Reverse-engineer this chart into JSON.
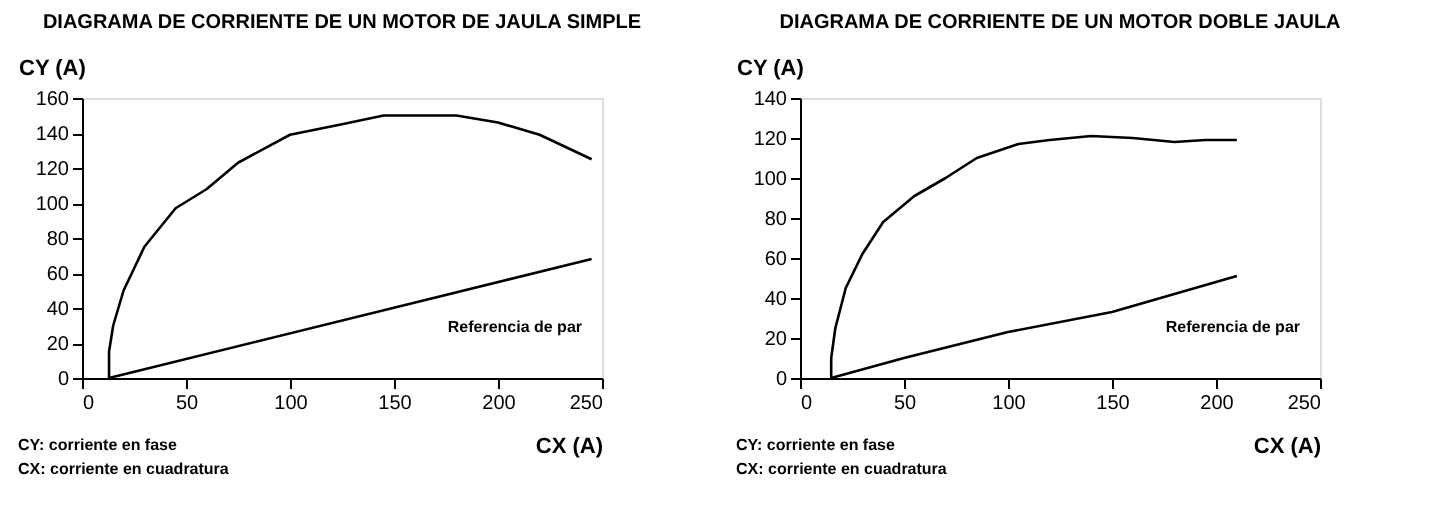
{
  "chart_data": [
    {
      "type": "line",
      "title": "DIAGRAMA DE CORRIENTE DE UN MOTOR DE JAULA SIMPLE",
      "xlabel": "CX (A)",
      "ylabel": "CY (A)",
      "xlim": [
        0,
        250
      ],
      "xticks": [
        0,
        50,
        100,
        150,
        200,
        250
      ],
      "ylim": [
        0,
        160
      ],
      "yticks": [
        0,
        20,
        40,
        60,
        80,
        100,
        120,
        140,
        160
      ],
      "grid": false,
      "line_style": "solid",
      "marker": "none",
      "series": [
        {
          "color": "#000000",
          "x": [
            13,
            13,
            15,
            20,
            30,
            45,
            60,
            75,
            100,
            125,
            145,
            160,
            180,
            200,
            220,
            245
          ],
          "values": [
            0,
            15,
            30,
            50,
            75,
            97,
            108,
            123,
            139,
            145,
            150,
            150,
            150,
            146,
            139,
            125
          ]
        },
        {
          "color": "#000000",
          "x": [
            13,
            245
          ],
          "values": [
            0,
            68
          ]
        }
      ],
      "annotations": [
        "Referencia de par",
        "CY: corriente en fase",
        "CX: corriente en cuadratura"
      ]
    },
    {
      "type": "line",
      "title": "DIAGRAMA DE CORRIENTE DE UN MOTOR DOBLE JAULA",
      "xlabel": "CX (A)",
      "ylabel": "CY (A)",
      "xlim": [
        0,
        250
      ],
      "xticks": [
        0,
        50,
        100,
        150,
        200,
        250
      ],
      "ylim": [
        0,
        140
      ],
      "yticks": [
        0,
        20,
        40,
        60,
        80,
        100,
        120,
        140
      ],
      "grid": false,
      "line_style": "solid",
      "marker": "none",
      "series": [
        {
          "color": "#000000",
          "x": [
            15,
            15,
            17,
            22,
            30,
            40,
            55,
            70,
            85,
            105,
            120,
            140,
            160,
            180,
            195,
            210
          ],
          "values": [
            0,
            10,
            25,
            45,
            62,
            78,
            91,
            100,
            110,
            117,
            119,
            121,
            120,
            118,
            119,
            119
          ]
        },
        {
          "color": "#000000",
          "x": [
            15,
            50,
            100,
            150,
            180,
            210
          ],
          "values": [
            0,
            10,
            23,
            33,
            42,
            51
          ]
        }
      ],
      "annotations": [
        "Referencia de par",
        "CY: corriente en fase",
        "CX: corriente en cuadratura"
      ]
    }
  ]
}
